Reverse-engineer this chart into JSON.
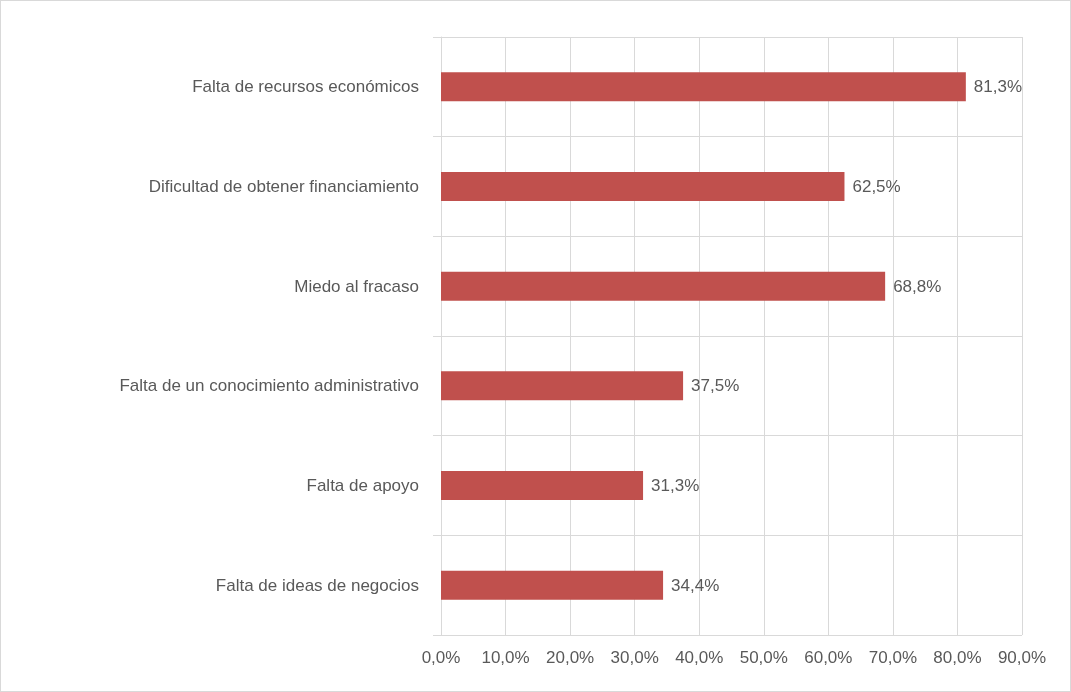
{
  "chart_data": {
    "type": "bar",
    "orientation": "horizontal",
    "categories": [
      "Falta de recursos económicos",
      "Dificultad de obtener financiamiento",
      "Miedo al fracaso",
      "Falta de un conocimiento administrativo",
      "Falta de apoyo",
      "Falta de ideas de negocios"
    ],
    "values": [
      81.3,
      62.5,
      68.8,
      37.5,
      31.3,
      34.4
    ],
    "value_labels": [
      "81,3%",
      "62,5%",
      "68,8%",
      "37,5%",
      "31,3%",
      "34,4%"
    ],
    "color": "#c0504d",
    "xlim": [
      0,
      90
    ],
    "xticks": [
      {
        "value": 0,
        "label": "0,0%"
      },
      {
        "value": 10,
        "label": "10,0%"
      },
      {
        "value": 20,
        "label": "20,0%"
      },
      {
        "value": 30,
        "label": "30,0%"
      },
      {
        "value": 40,
        "label": "40,0%"
      },
      {
        "value": 50,
        "label": "50,0%"
      },
      {
        "value": 60,
        "label": "60,0%"
      },
      {
        "value": 70,
        "label": "70,0%"
      },
      {
        "value": 80,
        "label": "80,0%"
      },
      {
        "value": 90,
        "label": "90,0%"
      }
    ],
    "grid": true
  }
}
